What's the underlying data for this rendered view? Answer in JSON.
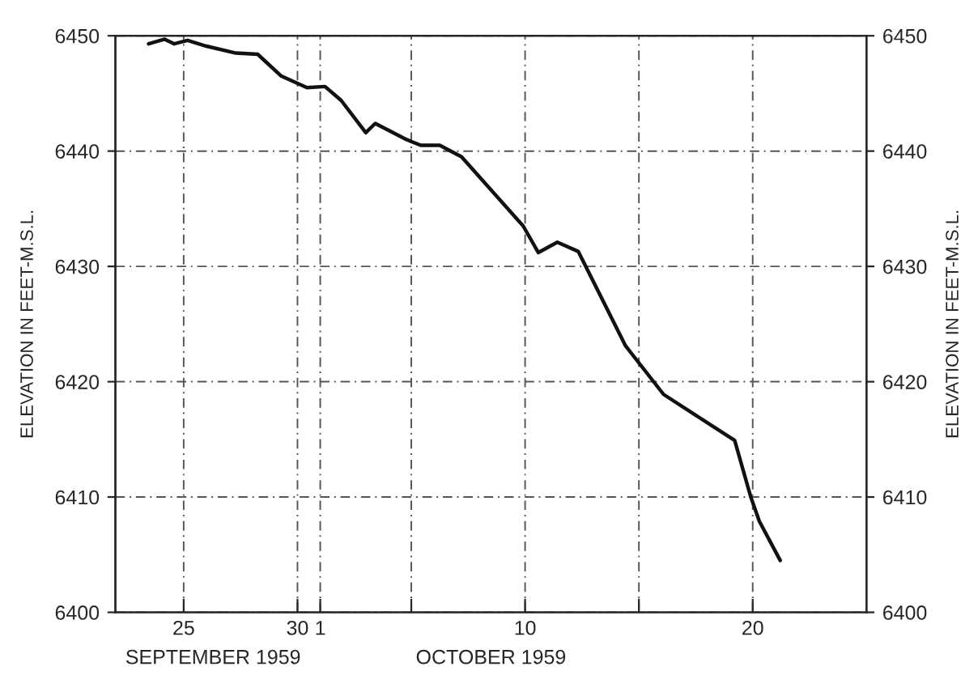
{
  "chart_data": {
    "type": "line",
    "ylabel": "ELEVATION IN FEET-M.S.L.",
    "y2label": "ELEVATION IN FEET-M.S.L.",
    "annotations": [
      "SEPTEMBER 1959",
      "OCTOBER 1959"
    ],
    "x": [
      "1959-09-23T11:00",
      "1959-09-24T04:00",
      "1959-09-24T14:00",
      "1959-09-25T04:00",
      "1959-09-26T00:00",
      "1959-09-27T07:00",
      "1959-09-28T06:00",
      "1959-09-29T07:00",
      "1959-09-30T10:00",
      "1959-10-01T05:00",
      "1959-10-01T22:00",
      "1959-10-03T00:00",
      "1959-10-03T10:00",
      "1959-10-04T19:00",
      "1959-10-05T10:00",
      "1959-10-06T06:00",
      "1959-10-07T05:00",
      "1959-10-09T22:00",
      "1959-10-10T14:00",
      "1959-10-11T10:00",
      "1959-10-12T08:00",
      "1959-10-14T10:00",
      "1959-10-16T02:00",
      "1959-10-19T05:00",
      "1959-10-19T22:00",
      "1959-10-20T07:00",
      "1959-10-21T05:00"
    ],
    "series": [
      {
        "color": "#111111",
        "values": [
          6449.3,
          6449.7,
          6449.3,
          6449.6,
          6449.1,
          6448.5,
          6448.4,
          6446.5,
          6445.5,
          6445.6,
          6444.4,
          6441.6,
          6442.4,
          6441.0,
          6440.5,
          6440.5,
          6439.5,
          6433.5,
          6431.2,
          6432.1,
          6431.3,
          6423.1,
          6418.9,
          6414.9,
          6410.0,
          6407.9,
          6404.5
        ]
      }
    ],
    "xlim": [
      "1959-09-22",
      "1959-10-25"
    ],
    "xticks": [
      {
        "value": "1959-09-25",
        "label": "25"
      },
      {
        "value": "1959-09-30",
        "label": "30"
      },
      {
        "value": "1959-10-01",
        "label": "1"
      },
      {
        "value": "1959-10-05",
        "label": null
      },
      {
        "value": "1959-10-10",
        "label": "10"
      },
      {
        "value": "1959-10-15",
        "label": null
      },
      {
        "value": "1959-10-20",
        "label": "20"
      }
    ],
    "ylim": [
      6400,
      6450
    ],
    "yticks": [
      6400,
      6410,
      6420,
      6430,
      6440,
      6450
    ],
    "y2lim": [
      6400,
      6450
    ],
    "y2ticks": [
      6400,
      6410,
      6420,
      6430,
      6440,
      6450
    ],
    "grid": true,
    "marker": "none",
    "line_style": "solid"
  }
}
